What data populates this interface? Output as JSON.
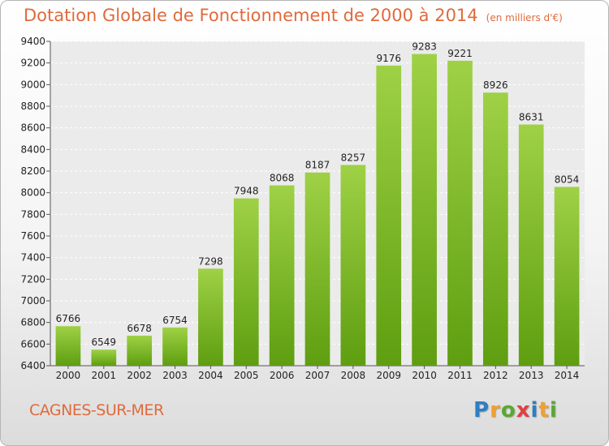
{
  "chart_data": {
    "type": "bar",
    "title": "Dotation Globale de Fonctionnement de 2000 à 2014",
    "unit_note": "(en milliers d'€)",
    "categories": [
      "2000",
      "2001",
      "2002",
      "2003",
      "2004",
      "2005",
      "2006",
      "2007",
      "2008",
      "2009",
      "2010",
      "2011",
      "2012",
      "2013",
      "2014"
    ],
    "values": [
      6766,
      6549,
      6678,
      6754,
      7298,
      7948,
      8068,
      8187,
      8257,
      9176,
      9283,
      9221,
      8926,
      8631,
      8054
    ],
    "ylim": [
      6400,
      9400
    ],
    "yticks": [
      6400,
      6600,
      6800,
      7000,
      7200,
      7400,
      7600,
      7800,
      8000,
      8200,
      8400,
      8600,
      8800,
      9000,
      9200,
      9400
    ],
    "grid": true,
    "bar_color_top": "#9fd146",
    "bar_color_bottom": "#5e9e10"
  },
  "location": "CAGNES-SUR-MER",
  "logo": {
    "letters": [
      "P",
      "r",
      "o",
      "x",
      "i",
      "t",
      "i"
    ],
    "colors": [
      "#2d7fc1",
      "#f0a030",
      "#5aa830",
      "#e04040",
      "#2d7fc1",
      "#f0a030",
      "#5aa830"
    ]
  }
}
